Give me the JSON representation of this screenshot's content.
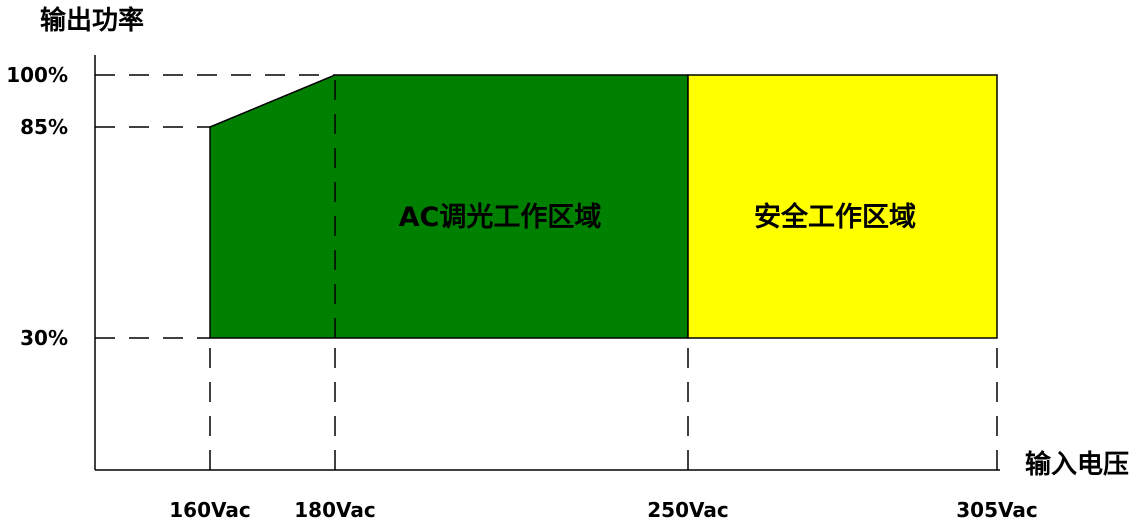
{
  "chart_data": {
    "type": "area",
    "ylabel": "输出功率",
    "xlabel": "输入电压",
    "x_ticks": [
      {
        "value": 160,
        "label": "160Vac"
      },
      {
        "value": 180,
        "label": "180Vac"
      },
      {
        "value": 250,
        "label": "250Vac"
      },
      {
        "value": 305,
        "label": "305Vac"
      }
    ],
    "y_ticks": [
      {
        "value": 100,
        "label": "100%"
      },
      {
        "value": 85,
        "label": "85%"
      },
      {
        "value": 30,
        "label": "30%"
      }
    ],
    "regions": [
      {
        "name": "AC调光工作区域",
        "color": "#008000",
        "x": [
          160,
          180,
          250
        ],
        "y_upper": [
          85,
          100,
          100
        ],
        "y_lower": [
          30,
          30,
          30
        ]
      },
      {
        "name": "安全工作区域",
        "color": "#ffff00",
        "x": [
          250,
          305
        ],
        "y_upper": [
          100,
          100
        ],
        "y_lower": [
          30,
          30
        ]
      }
    ],
    "grid": false,
    "legend": "none"
  }
}
